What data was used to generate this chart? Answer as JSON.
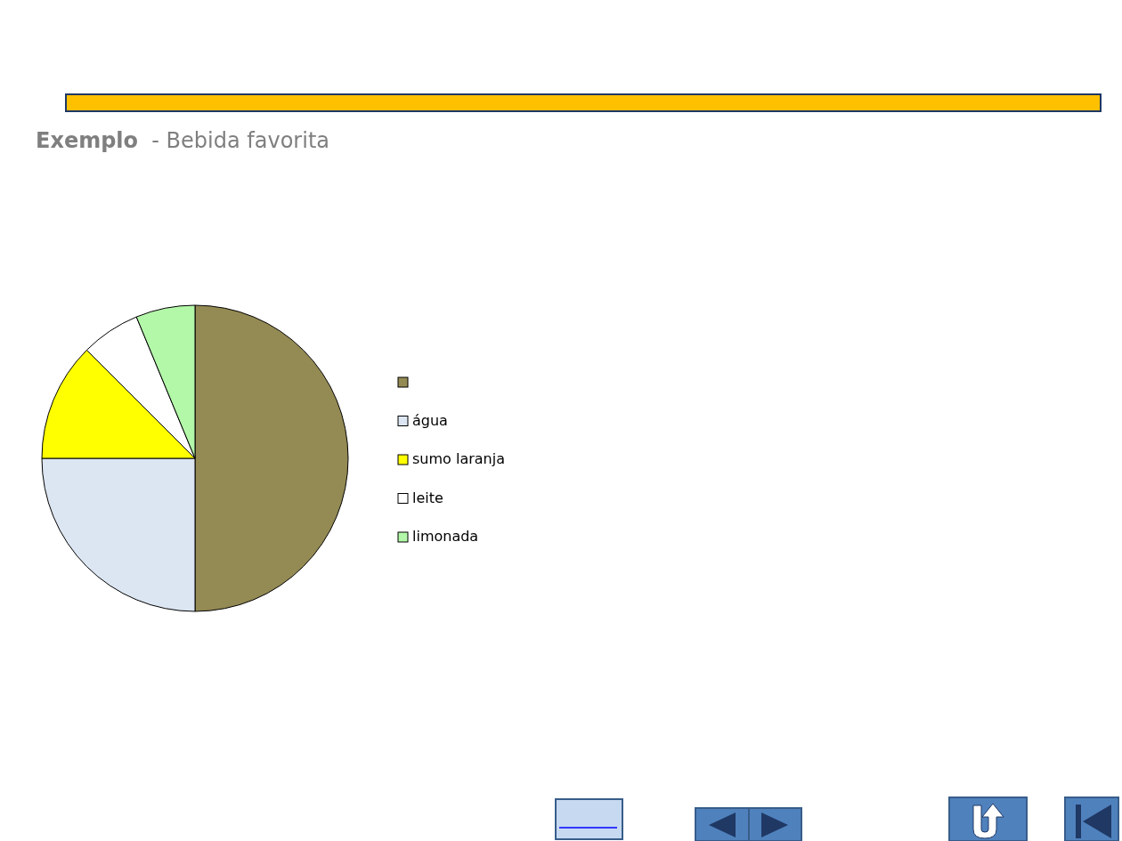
{
  "chart_data": {
    "type": "pie",
    "title": "Exemplo  - Bebida favorita",
    "categories": [
      null,
      "água",
      "sumo laranja",
      "leite",
      "limonada"
    ],
    "values": [
      50,
      25,
      12.5,
      6.25,
      6.25
    ],
    "colors": [
      "#948a54",
      "#dce6f2",
      "#ffff00",
      "#ffffff",
      "#b3f7a9"
    ],
    "legend": "right"
  }
}
